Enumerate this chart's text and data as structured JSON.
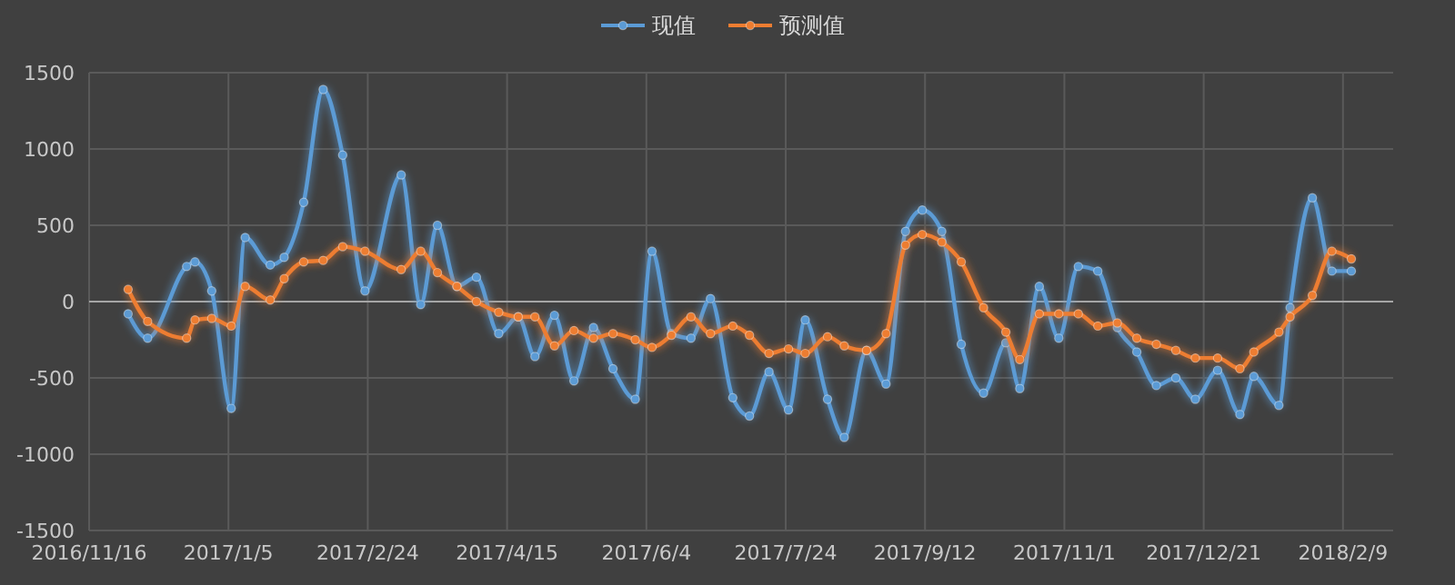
{
  "chart_data": {
    "type": "line",
    "x": [
      "2016-11-30",
      "2016-12-07",
      "2016-12-21",
      "2016-12-24",
      "2016-12-30",
      "2017-01-06",
      "2017-01-11",
      "2017-01-20",
      "2017-01-25",
      "2017-02-01",
      "2017-02-08",
      "2017-02-15",
      "2017-02-23",
      "2017-03-08",
      "2017-03-15",
      "2017-03-21",
      "2017-03-28",
      "2017-04-04",
      "2017-04-12",
      "2017-04-19",
      "2017-04-25",
      "2017-05-02",
      "2017-05-09",
      "2017-05-16",
      "2017-05-23",
      "2017-05-31",
      "2017-06-06",
      "2017-06-13",
      "2017-06-20",
      "2017-06-27",
      "2017-07-05",
      "2017-07-11",
      "2017-07-18",
      "2017-07-25",
      "2017-07-31",
      "2017-08-08",
      "2017-08-14",
      "2017-08-22",
      "2017-08-29",
      "2017-09-05",
      "2017-09-11",
      "2017-09-18",
      "2017-09-25",
      "2017-10-03",
      "2017-10-11",
      "2017-10-16",
      "2017-10-23",
      "2017-10-30",
      "2017-11-06",
      "2017-11-13",
      "2017-11-20",
      "2017-11-27",
      "2017-12-04",
      "2017-12-11",
      "2017-12-18",
      "2017-12-26",
      "2018-01-03",
      "2018-01-08",
      "2018-01-17",
      "2018-01-21",
      "2018-01-29",
      "2018-02-05",
      "2018-02-12"
    ],
    "series": [
      {
        "name": "现值",
        "color": "#5b9bd5",
        "values": [
          -80,
          -240,
          230,
          260,
          70,
          -700,
          420,
          240,
          290,
          650,
          1390,
          960,
          70,
          830,
          -20,
          500,
          100,
          160,
          -210,
          -100,
          -360,
          -90,
          -520,
          -170,
          -440,
          -640,
          330,
          -210,
          -240,
          20,
          -630,
          -750,
          -460,
          -710,
          -120,
          -640,
          -890,
          -320,
          -540,
          460,
          600,
          460,
          -280,
          -600,
          -270,
          -570,
          100,
          -240,
          230,
          200,
          -170,
          -330,
          -550,
          -500,
          -640,
          -450,
          -740,
          -490,
          -680,
          -40,
          680,
          200,
          200
        ]
      },
      {
        "name": "预测值",
        "color": "#ed7d31",
        "values": [
          80,
          -130,
          -240,
          -120,
          -110,
          -160,
          100,
          10,
          150,
          260,
          270,
          360,
          330,
          210,
          330,
          190,
          100,
          0,
          -70,
          -100,
          -100,
          -290,
          -190,
          -240,
          -210,
          -250,
          -300,
          -220,
          -100,
          -210,
          -160,
          -220,
          -340,
          -310,
          -340,
          -230,
          -290,
          -320,
          -210,
          370,
          440,
          390,
          260,
          -40,
          -200,
          -380,
          -80,
          -80,
          -80,
          -160,
          -140,
          -240,
          -280,
          -320,
          -370,
          -370,
          -440,
          -330,
          -200,
          -100,
          40,
          330,
          280
        ]
      }
    ],
    "xlim": [
      "2016-11-16",
      "2018-02-27"
    ],
    "xticks": [
      {
        "value": "2016-11-16",
        "label": "2016/11/16"
      },
      {
        "value": "2017-01-05",
        "label": "2017/1/5"
      },
      {
        "value": "2017-02-24",
        "label": "2017/2/24"
      },
      {
        "value": "2017-04-15",
        "label": "2017/4/15"
      },
      {
        "value": "2017-06-04",
        "label": "2017/6/4"
      },
      {
        "value": "2017-07-24",
        "label": "2017/7/24"
      },
      {
        "value": "2017-09-12",
        "label": "2017/9/12"
      },
      {
        "value": "2017-11-01",
        "label": "2017/11/1"
      },
      {
        "value": "2017-12-21",
        "label": "2017/12/21"
      },
      {
        "value": "2018-02-09",
        "label": "2018/2/9"
      }
    ],
    "ylim": [
      -1500,
      1500
    ],
    "yticks": [
      -1500,
      -1000,
      -500,
      0,
      500,
      1000,
      1500
    ],
    "grid": true,
    "legend": "top",
    "marker": "circle"
  }
}
